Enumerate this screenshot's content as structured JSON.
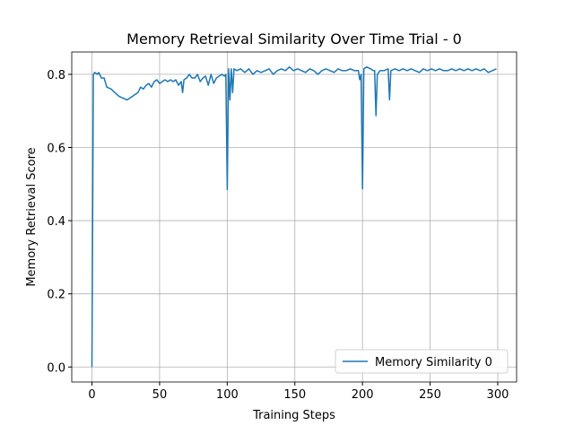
{
  "chart_data": {
    "type": "line",
    "title": "Memory Retrieval Similarity Over Time Trial - 0",
    "x_label": "Training Steps",
    "y_label": "Memory Retrieval Score",
    "x": [
      0,
      1,
      2,
      4,
      5,
      7,
      9,
      11,
      14,
      17,
      20,
      23,
      26,
      28,
      30,
      32,
      34,
      36,
      38,
      40,
      42,
      44,
      46,
      48,
      50,
      52,
      54,
      56,
      58,
      60,
      62,
      64,
      66,
      67,
      68,
      70,
      72,
      74,
      76,
      78,
      80,
      82,
      84,
      86,
      88,
      90,
      92,
      94,
      96,
      98,
      99,
      100,
      101,
      102,
      103,
      104,
      105,
      107,
      110,
      113,
      116,
      119,
      122,
      125,
      128,
      131,
      134,
      137,
      140,
      143,
      146,
      149,
      152,
      155,
      158,
      161,
      164,
      167,
      170,
      173,
      176,
      179,
      182,
      185,
      188,
      191,
      194,
      197,
      198,
      199,
      200,
      201,
      203,
      206,
      208,
      209,
      210,
      211,
      213,
      216,
      219,
      220,
      221,
      224,
      227,
      230,
      233,
      236,
      239,
      242,
      245,
      248,
      251,
      254,
      257,
      260,
      263,
      266,
      269,
      272,
      275,
      278,
      281,
      284,
      287,
      290,
      293,
      296,
      299
    ],
    "series": [
      {
        "name": "Memory Similarity 0",
        "color": "#1f77b4",
        "values": [
          0.0,
          0.8,
          0.805,
          0.8,
          0.805,
          0.79,
          0.79,
          0.765,
          0.76,
          0.75,
          0.74,
          0.735,
          0.73,
          0.735,
          0.74,
          0.745,
          0.75,
          0.765,
          0.76,
          0.77,
          0.775,
          0.765,
          0.78,
          0.785,
          0.775,
          0.78,
          0.785,
          0.78,
          0.785,
          0.78,
          0.785,
          0.77,
          0.78,
          0.75,
          0.785,
          0.79,
          0.8,
          0.79,
          0.79,
          0.8,
          0.78,
          0.79,
          0.795,
          0.77,
          0.8,
          0.775,
          0.79,
          0.795,
          0.8,
          0.795,
          0.8,
          0.485,
          0.815,
          0.73,
          0.815,
          0.75,
          0.815,
          0.81,
          0.815,
          0.805,
          0.815,
          0.8,
          0.81,
          0.805,
          0.81,
          0.815,
          0.8,
          0.81,
          0.815,
          0.81,
          0.82,
          0.81,
          0.815,
          0.81,
          0.805,
          0.815,
          0.81,
          0.8,
          0.81,
          0.815,
          0.81,
          0.805,
          0.815,
          0.81,
          0.81,
          0.815,
          0.81,
          0.81,
          0.785,
          0.8,
          0.487,
          0.815,
          0.82,
          0.815,
          0.81,
          0.81,
          0.687,
          0.8,
          0.81,
          0.81,
          0.815,
          0.73,
          0.81,
          0.815,
          0.81,
          0.815,
          0.81,
          0.815,
          0.81,
          0.805,
          0.815,
          0.81,
          0.815,
          0.81,
          0.815,
          0.81,
          0.81,
          0.815,
          0.81,
          0.815,
          0.81,
          0.815,
          0.81,
          0.815,
          0.81,
          0.815,
          0.805,
          0.81,
          0.815
        ]
      }
    ],
    "xlim": [
      -14.95,
      313.95
    ],
    "ylim": [
      -0.041,
      0.861
    ],
    "xticks": [
      0,
      50,
      100,
      150,
      200,
      250,
      300
    ],
    "yticks": [
      {
        "value": 0,
        "label": "0.0"
      },
      0.2,
      0.4,
      0.6,
      0.8
    ],
    "grid": true,
    "legend": "lower right"
  }
}
